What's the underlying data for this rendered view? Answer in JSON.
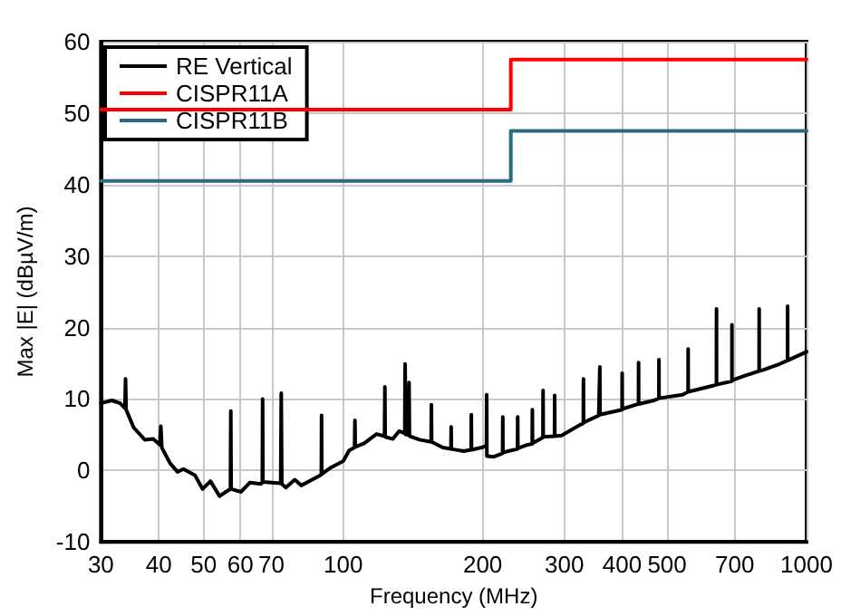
{
  "chart_data": {
    "type": "line",
    "xlabel": "Frequency (MHz)",
    "ylabel": "Max |E| (dBµV/m)",
    "log": "x",
    "grid": true,
    "legend": "top left",
    "marker": "none",
    "line_style": "solid",
    "xlim": [
      30,
      1000
    ],
    "xticks": [
      30,
      40,
      50,
      60,
      70,
      100,
      200,
      300,
      400,
      500,
      700,
      1000
    ],
    "ylim": [
      -10,
      60
    ],
    "yticks": [
      -10,
      0,
      10,
      20,
      30,
      40,
      50,
      60
    ],
    "series": [
      {
        "name": "RE Vertical",
        "color": "#000000",
        "x": [
          30,
          31.7,
          33,
          33.8,
          33.9,
          34,
          35.3,
          37.3,
          38.9,
          40.2,
          40.4,
          40.6,
          42.3,
          43.9,
          45.2,
          47.9,
          49.7,
          51.7,
          54.1,
          55.8,
          57.1,
          57.2,
          57.3,
          60.2,
          62.9,
          66.5,
          66.9,
          67,
          67.1,
          73.3,
          73.5,
          73.7,
          75.2,
          78.6,
          81.2,
          87.9,
          89.7,
          89.8,
          89.9,
          94,
          100,
          103,
          105.8,
          106,
          106.2,
          111,
          118,
          122.8,
          123,
          123.2,
          128,
          132,
          135.8,
          136,
          136.5,
          138.5,
          138.7,
          139,
          146,
          154.8,
          155,
          155.2,
          164,
          170.8,
          171,
          171.2,
          182,
          188.8,
          189,
          189.2,
          199,
          203.8,
          204,
          204.2,
          211,
          220.8,
          221,
          221.2,
          227,
          237.8,
          238,
          238.2,
          250,
          255.8,
          256,
          256.2,
          269.8,
          270,
          270.2,
          285.8,
          286,
          286.2,
          296,
          325,
          329.8,
          330,
          330.2,
          356,
          357.8,
          358,
          358.2,
          399.8,
          400,
          400.2,
          433.8,
          434,
          434.2,
          469,
          480,
          480.2,
          480.4,
          540,
          555,
          555.2,
          555.4,
          631,
          639,
          639.2,
          639.4,
          690,
          690.2,
          690.4,
          732,
          790,
          790.2,
          790.4,
          801,
          875,
          910,
          910.2,
          910.4,
          1000
        ],
        "values": [
          9.4,
          9.8,
          9.4,
          8.7,
          12.8,
          8.5,
          6,
          4.3,
          4.4,
          3.6,
          6.2,
          3.2,
          1,
          -0.2,
          0.2,
          -0.7,
          -2.6,
          -1.5,
          -3.6,
          -3,
          -2.6,
          8.3,
          -2.6,
          -3,
          -1.7,
          -1.9,
          -1.6,
          10,
          -1.6,
          -1.8,
          10.8,
          -1.9,
          -2.4,
          -1.3,
          -2.1,
          -0.9,
          -0.6,
          7.7,
          -0.5,
          0.4,
          1.3,
          2.8,
          3.2,
          7,
          3.3,
          3.8,
          5.1,
          4.8,
          11.7,
          4.7,
          4.4,
          5.5,
          5.2,
          14.9,
          5,
          5,
          12.3,
          4.8,
          4.3,
          4,
          9.2,
          4,
          3.2,
          3,
          6.1,
          3,
          2.7,
          2.9,
          7.8,
          2.9,
          3.2,
          3.5,
          10.6,
          2,
          1.9,
          2.4,
          7.5,
          2.5,
          2.7,
          3,
          7.5,
          3.1,
          3.6,
          3.7,
          8.5,
          3.8,
          4.6,
          11.2,
          4.7,
          4.8,
          10.5,
          4.8,
          4.9,
          6.4,
          6.6,
          12.8,
          6.7,
          7.7,
          7.7,
          14.5,
          7.8,
          8.5,
          13.6,
          8.6,
          9.3,
          15.1,
          9.3,
          9.8,
          10.1,
          15.5,
          10.1,
          10.6,
          11,
          17,
          11,
          11.9,
          12,
          22.6,
          12,
          12.5,
          20.4,
          12.6,
          13.2,
          13.9,
          22.6,
          13.9,
          14,
          14.9,
          15.4,
          23,
          15.4,
          16.6
        ]
      },
      {
        "name": "CISPR11A",
        "color": "#ff0000",
        "x": [
          30,
          230,
          230,
          1000
        ],
        "values": [
          50.5,
          50.5,
          57.5,
          57.5
        ]
      },
      {
        "name": "CISPR11B",
        "color": "#2b6a80",
        "x": [
          30,
          230,
          230,
          1000
        ],
        "values": [
          40.5,
          40.5,
          47.5,
          47.5
        ]
      }
    ]
  }
}
